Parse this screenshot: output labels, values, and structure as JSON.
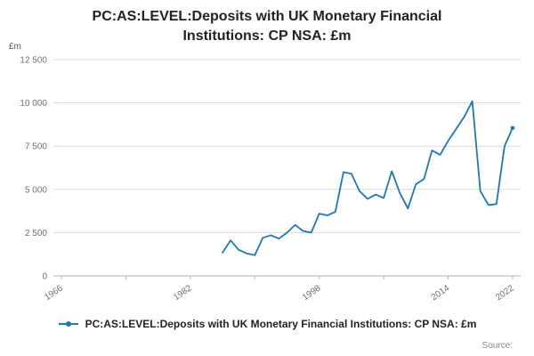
{
  "title": "PC:AS:LEVEL:Deposits with UK Monetary Financial Institutions: CP NSA: £m",
  "legend_label": "PC:AS:LEVEL:Deposits with UK Monetary Financial Institutions: CP NSA: £m",
  "source_label": "Source:",
  "colors": {
    "line": "#1f78b4",
    "grid": "#d9d9d9",
    "axis": "#b3b3b3",
    "tick_text": "#707070",
    "title_text": "#222222"
  },
  "chart_data": {
    "type": "line",
    "title": "PC:AS:LEVEL:Deposits with UK Monetary Financial Institutions: CP NSA: £m",
    "xlabel": "",
    "ylabel": "£m",
    "grid": "horizontal",
    "legend_position": "bottom",
    "xlim": [
      1965,
      2023
    ],
    "ylim": [
      0,
      12500
    ],
    "y_ticks": [
      0,
      2500,
      5000,
      7500,
      10000,
      12500
    ],
    "y_tick_labels": [
      "0",
      "2 500",
      "5 000",
      "7 500",
      "10 000",
      "12 500"
    ],
    "x_ticks": [
      {
        "v": 1966,
        "label": "1966"
      },
      {
        "v": 1974,
        "label": ""
      },
      {
        "v": 1982,
        "label": "1982"
      },
      {
        "v": 1990,
        "label": ""
      },
      {
        "v": 1998,
        "label": "1998"
      },
      {
        "v": 2006,
        "label": ""
      },
      {
        "v": 2014,
        "label": "2014"
      },
      {
        "v": 2022,
        "label": "2022"
      }
    ],
    "series": [
      {
        "name": "PC:AS:LEVEL:Deposits with UK Monetary Financial Institutions: CP NSA: £m",
        "x": [
          1986,
          1987,
          1988,
          1989,
          1990,
          1991,
          1992,
          1993,
          1994,
          1995,
          1996,
          1997,
          1998,
          1999,
          2000,
          2001,
          2002,
          2003,
          2004,
          2005,
          2006,
          2007,
          2008,
          2009,
          2010,
          2011,
          2012,
          2013,
          2014,
          2015,
          2016,
          2017,
          2018,
          2019,
          2020,
          2021,
          2022
        ],
        "values": [
          1350,
          2050,
          1500,
          1300,
          1200,
          2200,
          2350,
          2150,
          2500,
          2950,
          2600,
          2500,
          3600,
          3500,
          3700,
          6000,
          5900,
          4900,
          4450,
          4700,
          4500,
          6050,
          4800,
          3900,
          5300,
          5600,
          7250,
          7000,
          7800,
          8500,
          9200,
          10100,
          4900,
          4100,
          4150,
          7500,
          8550
        ]
      }
    ]
  }
}
